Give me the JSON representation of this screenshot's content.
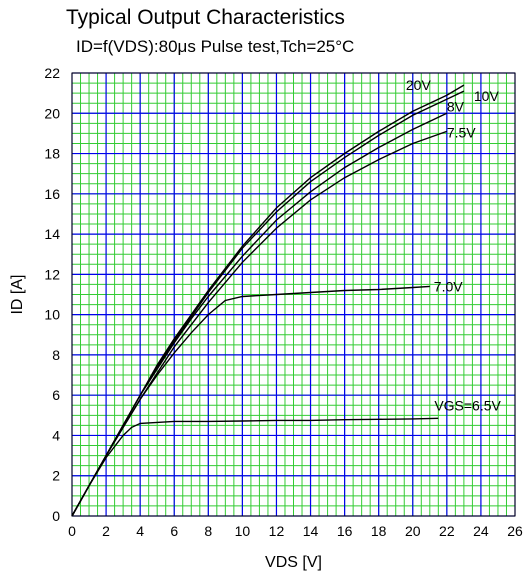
{
  "chart_data": {
    "type": "line",
    "title": "Typical Output Characteristics",
    "subtitle": "ID=f(VDS):80μs Pulse test,Tch=25°C",
    "xlabel": "VDS [V]",
    "ylabel": "ID [A]",
    "xlim": [
      0,
      26
    ],
    "ylim": [
      0,
      22
    ],
    "xticks": [
      0,
      2,
      4,
      6,
      8,
      10,
      12,
      14,
      16,
      18,
      20,
      22,
      24,
      26
    ],
    "yticks": [
      0,
      2,
      4,
      6,
      8,
      10,
      12,
      14,
      16,
      18,
      20,
      22
    ],
    "grid": true,
    "colors": {
      "minor_grid": "#33cc33",
      "major_grid": "#0000ee",
      "curve": "#000000"
    },
    "series": [
      {
        "name": "20V",
        "x": [
          0,
          1,
          2,
          3,
          4,
          5,
          6,
          7,
          8,
          10,
          12,
          14,
          16,
          18,
          20,
          22,
          23
        ],
        "y": [
          0,
          1.5,
          3.0,
          4.5,
          6.0,
          7.5,
          8.8,
          10.0,
          11.2,
          13.4,
          15.3,
          16.8,
          18.0,
          19.1,
          20.1,
          20.9,
          21.4
        ]
      },
      {
        "name": "10V",
        "x": [
          0,
          1,
          2,
          3,
          4,
          5,
          6,
          7,
          8,
          10,
          12,
          14,
          16,
          18,
          20,
          22,
          23
        ],
        "y": [
          0,
          1.5,
          3.0,
          4.5,
          6.0,
          7.4,
          8.7,
          9.9,
          11.1,
          13.3,
          15.1,
          16.6,
          17.8,
          18.9,
          19.9,
          20.7,
          21.1
        ]
      },
      {
        "name": "8V",
        "x": [
          0,
          1,
          2,
          3,
          4,
          5,
          6,
          7,
          8,
          10,
          12,
          14,
          16,
          18,
          20,
          22
        ],
        "y": [
          0,
          1.5,
          3.0,
          4.5,
          6.0,
          7.3,
          8.6,
          9.8,
          10.9,
          12.9,
          14.7,
          16.1,
          17.3,
          18.3,
          19.2,
          20.0
        ]
      },
      {
        "name": "7.5V",
        "x": [
          0,
          1,
          2,
          3,
          4,
          5,
          6,
          7,
          8,
          10,
          12,
          14,
          16,
          18,
          20,
          22
        ],
        "y": [
          0,
          1.5,
          3.0,
          4.4,
          5.8,
          7.1,
          8.4,
          9.5,
          10.6,
          12.6,
          14.3,
          15.7,
          16.8,
          17.7,
          18.5,
          19.1
        ]
      },
      {
        "name": "7.0V",
        "x": [
          0,
          1,
          2,
          3,
          4,
          5,
          6,
          7,
          8,
          9,
          10,
          12,
          14,
          16,
          18,
          20,
          21
        ],
        "y": [
          0,
          1.5,
          3.0,
          4.4,
          5.8,
          7.0,
          8.1,
          9.1,
          10.0,
          10.7,
          10.9,
          11.0,
          11.1,
          11.2,
          11.25,
          11.35,
          11.4
        ]
      },
      {
        "name": "VGS=6.5V",
        "x": [
          0,
          1,
          2,
          3,
          3.5,
          4,
          5,
          6,
          8,
          10,
          12,
          14,
          16,
          18,
          20,
          21.5
        ],
        "y": [
          0,
          1.5,
          2.9,
          4.0,
          4.4,
          4.6,
          4.65,
          4.7,
          4.7,
          4.72,
          4.75,
          4.75,
          4.78,
          4.8,
          4.82,
          4.85
        ]
      }
    ]
  }
}
